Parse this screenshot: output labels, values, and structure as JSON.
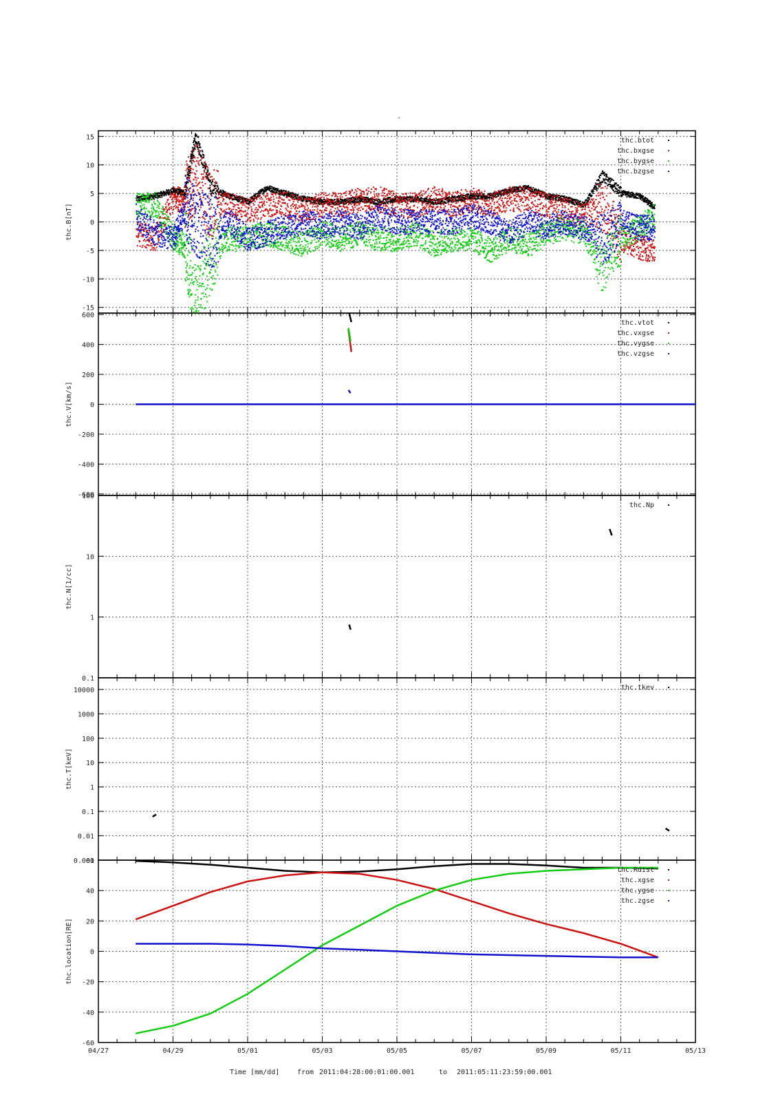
{
  "colors": {
    "black": "#000000",
    "red": "#cc1111",
    "green": "#11cc11",
    "blue": "#1111cc",
    "grid": "#555555",
    "frame": "#000000"
  },
  "top_mark": "-",
  "footer": {
    "xlabel": "Time [mm/dd]",
    "from_label": "from",
    "from_value": "2011:04:28:00:01:00.001",
    "to_label": "to",
    "to_value": "2011:05:11:23:59:00.001"
  },
  "chart_data": [
    {
      "type": "scatter",
      "ylabel": "thc.B[nT]",
      "yscale": "linear",
      "ylim": [
        -16,
        16
      ],
      "yticks": [
        15,
        10,
        5,
        0,
        -5,
        -10,
        -15
      ],
      "ytick_labels": [
        "15",
        "10",
        "5",
        "0",
        "-5",
        "-10",
        "-15"
      ],
      "xlim": [
        0,
        16
      ],
      "legend": [
        "thc.btot",
        "thc.bxgse",
        "thc.bygse",
        "thc.bzgse"
      ],
      "legend_position": "top-right",
      "series": [
        {
          "name": "thc.btot",
          "color": "black",
          "x": [
            1,
            1.5,
            2,
            2.3,
            2.6,
            3,
            3.5,
            4,
            4.5,
            5,
            5.5,
            6,
            6.5,
            7,
            7.5,
            8,
            8.5,
            9,
            9.5,
            10,
            10.5,
            11,
            11.5,
            12,
            12.5,
            13,
            13.5,
            14,
            14.5,
            14.9
          ],
          "y": [
            4,
            4.5,
            5.5,
            5,
            15,
            6,
            4.5,
            3.5,
            6,
            5,
            4,
            3.5,
            3.5,
            4,
            3.5,
            4,
            4,
            3.5,
            4,
            4.5,
            4.5,
            5.5,
            6,
            4.5,
            4,
            3,
            8,
            5,
            4.5,
            2.5
          ]
        },
        {
          "name": "thc.bxgse",
          "color": "red",
          "x": [
            1,
            1.5,
            2,
            2.3,
            2.6,
            3,
            3.5,
            4,
            4.5,
            5,
            5.5,
            6,
            6.5,
            7,
            7.5,
            8,
            8.5,
            9,
            9.5,
            10,
            10.5,
            11,
            11.5,
            12,
            12.5,
            13,
            13.5,
            14,
            14.5,
            14.9
          ],
          "y": [
            -2,
            -3,
            4,
            4,
            8,
            3,
            3,
            2,
            3,
            3,
            2,
            3,
            3,
            4,
            4,
            3,
            3,
            4,
            3,
            4,
            3,
            4,
            4,
            3,
            2,
            1,
            3,
            -3,
            -4.5,
            -5
          ]
        },
        {
          "name": "thc.bygse",
          "color": "green",
          "x": [
            1,
            1.5,
            2,
            2.3,
            2.6,
            3,
            3.5,
            4,
            4.5,
            5,
            5.5,
            6,
            6.5,
            7,
            7.5,
            8,
            8.5,
            9,
            9.5,
            10,
            10.5,
            11,
            11.5,
            12,
            12.5,
            13,
            13.5,
            14,
            14.5,
            14.9
          ],
          "y": [
            3,
            3,
            -3,
            -4,
            -14,
            -6,
            -3,
            -3,
            -2,
            -3,
            -4,
            -2,
            -3,
            -2,
            -3,
            -3,
            -2,
            -4,
            -3,
            -3,
            -5,
            -3,
            -4,
            -2,
            -1,
            -2,
            -8,
            -3,
            -1,
            1
          ]
        },
        {
          "name": "thc.bzgse",
          "color": "blue",
          "x": [
            1,
            1.5,
            2,
            2.3,
            2.6,
            3,
            3.5,
            4,
            4.5,
            5,
            5.5,
            6,
            6.5,
            7,
            7.5,
            8,
            8.5,
            9,
            9.5,
            10,
            10.5,
            11,
            11.5,
            12,
            12.5,
            13,
            13.5,
            14,
            14.5,
            14.9
          ],
          "y": [
            1,
            -2,
            -3,
            2,
            0,
            -2,
            0,
            -3,
            -2,
            -1,
            0,
            -1,
            0,
            -1,
            1,
            0,
            0,
            0,
            0,
            1,
            0,
            -2,
            0,
            -1,
            0,
            -1,
            -3,
            0,
            -1,
            -1
          ]
        }
      ]
    },
    {
      "type": "line",
      "ylabel": "thc.V[km/s]",
      "yscale": "linear",
      "ylim": [
        -610,
        610
      ],
      "yticks": [
        600,
        400,
        200,
        0,
        -200,
        -400,
        -600
      ],
      "ytick_labels": [
        "600",
        "400",
        "200",
        "0",
        "-200",
        "-400",
        "-600"
      ],
      "xlim": [
        0,
        16
      ],
      "legend": [
        "thc.vtot",
        "thc.vxgse",
        "thc.vygse",
        "thc.vzgse"
      ],
      "legend_position": "top-right",
      "series": [
        {
          "name": "thc.vtot",
          "color": "black",
          "x": [
            6.72,
            6.78
          ],
          "y": [
            640,
            550
          ]
        },
        {
          "name": "thc.vxgse",
          "color": "red",
          "x": [
            6.7,
            6.78
          ],
          "y": [
            500,
            350
          ]
        },
        {
          "name": "thc.vygse",
          "color": "green",
          "x": [
            6.7,
            6.76
          ],
          "y": [
            510,
            420
          ]
        },
        {
          "name": "thc.vzgse",
          "color": "blue",
          "x": [
            1,
            16.0,
            6.7,
            6.76
          ],
          "y": [
            0,
            0,
            95,
            75
          ]
        }
      ]
    },
    {
      "type": "scatter",
      "ylabel": "thc.N[1/cc]",
      "yscale": "log",
      "ylim": [
        0.1,
        100
      ],
      "yticks": [
        100,
        10,
        1,
        0.1
      ],
      "ytick_labels": [
        "100",
        "10",
        "1",
        "0.1"
      ],
      "xlim": [
        0,
        16
      ],
      "legend": [
        "thc.Np"
      ],
      "legend_position": "top-right",
      "series": [
        {
          "name": "thc.Np",
          "color": "black",
          "x": [
            6.72,
            6.76,
            13.7,
            13.76
          ],
          "y": [
            0.75,
            0.62,
            28,
            22
          ]
        }
      ]
    },
    {
      "type": "scatter",
      "ylabel": "thc.T[keV]",
      "yscale": "log",
      "ylim": [
        0.001,
        30000
      ],
      "yticks": [
        10000,
        1000,
        100,
        10,
        1,
        0.1,
        0.01,
        0.001
      ],
      "ytick_labels": [
        "10000",
        "1000",
        "100",
        "10",
        "1",
        "0.1",
        "0.01",
        "0.001"
      ],
      "xlim": [
        0,
        16
      ],
      "legend": [
        "thc.tkev"
      ],
      "legend_position": "top-right",
      "series": [
        {
          "name": "thc.tkev",
          "color": "black",
          "x": [
            1.45,
            1.55,
            15.2,
            15.3
          ],
          "y": [
            0.06,
            0.075,
            0.02,
            0.016
          ]
        }
      ]
    },
    {
      "type": "line",
      "ylabel": "thc.location[RE]",
      "yscale": "linear",
      "ylim": [
        -60,
        60
      ],
      "yticks": [
        60,
        40,
        20,
        0,
        -20,
        -40,
        -60
      ],
      "ytick_labels": [
        "60",
        "40",
        "20",
        "0",
        "-20",
        "-40",
        "-60"
      ],
      "xlim": [
        0,
        16
      ],
      "xticks": [
        0,
        2,
        4,
        6,
        8,
        10,
        12,
        14,
        16
      ],
      "xtick_labels": [
        "04/27",
        "04/29",
        "05/01",
        "05/03",
        "05/05",
        "05/07",
        "05/09",
        "05/11",
        "05/13"
      ],
      "legend": [
        "thc.Rdist",
        "thc.xgse",
        "thc.ygse",
        "thc.zgse"
      ],
      "legend_position": "top-right",
      "series": [
        {
          "name": "thc.Rdist",
          "color": "black",
          "x": [
            1,
            2,
            3,
            4,
            5,
            6,
            7,
            8,
            9,
            10,
            11,
            12,
            13,
            14,
            15
          ],
          "y": [
            59.5,
            58.5,
            57,
            55,
            53,
            52,
            52.5,
            54,
            56,
            57.5,
            57.5,
            56.5,
            55,
            55,
            54.5
          ]
        },
        {
          "name": "thc.xgse",
          "color": "red",
          "x": [
            1,
            2,
            3,
            4,
            5,
            6,
            7,
            8,
            9,
            10,
            11,
            12,
            13,
            14,
            15
          ],
          "y": [
            21,
            30,
            39,
            46,
            50,
            52,
            51,
            47,
            41,
            33,
            25,
            18,
            12,
            5,
            -4
          ]
        },
        {
          "name": "thc.ygse",
          "color": "green",
          "x": [
            1,
            2,
            3,
            4,
            5,
            6,
            7,
            8,
            9,
            10,
            11,
            12,
            13,
            14,
            15
          ],
          "y": [
            -54,
            -49,
            -41,
            -28,
            -12,
            4,
            17,
            30,
            40,
            47,
            51,
            53,
            54,
            55,
            55
          ]
        },
        {
          "name": "thc.zgse",
          "color": "blue",
          "x": [
            1,
            2,
            3,
            4,
            5,
            6,
            7,
            8,
            9,
            10,
            11,
            12,
            13,
            14,
            15
          ],
          "y": [
            5,
            5,
            5,
            4.5,
            3.5,
            2,
            1,
            0,
            -1,
            -2,
            -2.5,
            -3,
            -3.5,
            -4,
            -4
          ]
        }
      ]
    }
  ]
}
